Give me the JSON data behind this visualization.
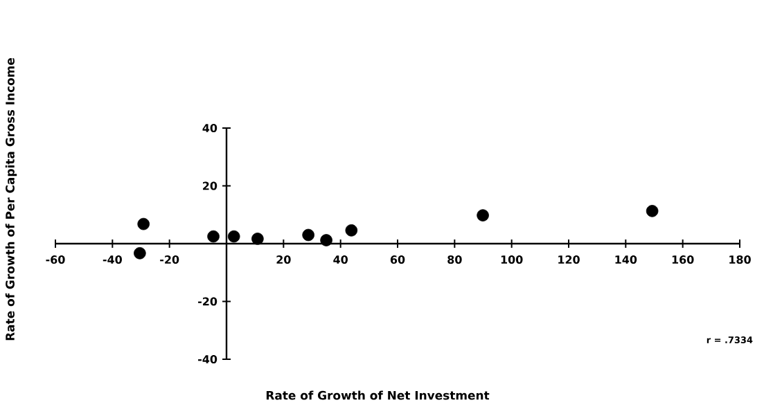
{
  "chart_data": {
    "type": "scatter",
    "xlabel": "Rate of Growth of Net Investment",
    "ylabel": "Rate of Growth of Per Capita Gross Income",
    "x": [
      -29.1,
      -30.4,
      -4.6,
      2.6,
      10.9,
      28.7,
      35.0,
      43.8,
      89.9,
      149.3
    ],
    "values": [
      6.8,
      -3.3,
      2.5,
      2.5,
      1.7,
      3.0,
      1.2,
      4.6,
      9.8,
      11.3
    ],
    "color": "#000000",
    "marker": "circle",
    "xlim": [
      -60,
      180
    ],
    "ylim": [
      -40,
      40
    ],
    "xticks": [
      -60,
      -40,
      -20,
      20,
      40,
      60,
      80,
      100,
      120,
      140,
      160,
      180
    ],
    "yticks": [
      -40,
      -20,
      20,
      40
    ],
    "grid": false,
    "annotations": [
      "r = .7334"
    ]
  }
}
